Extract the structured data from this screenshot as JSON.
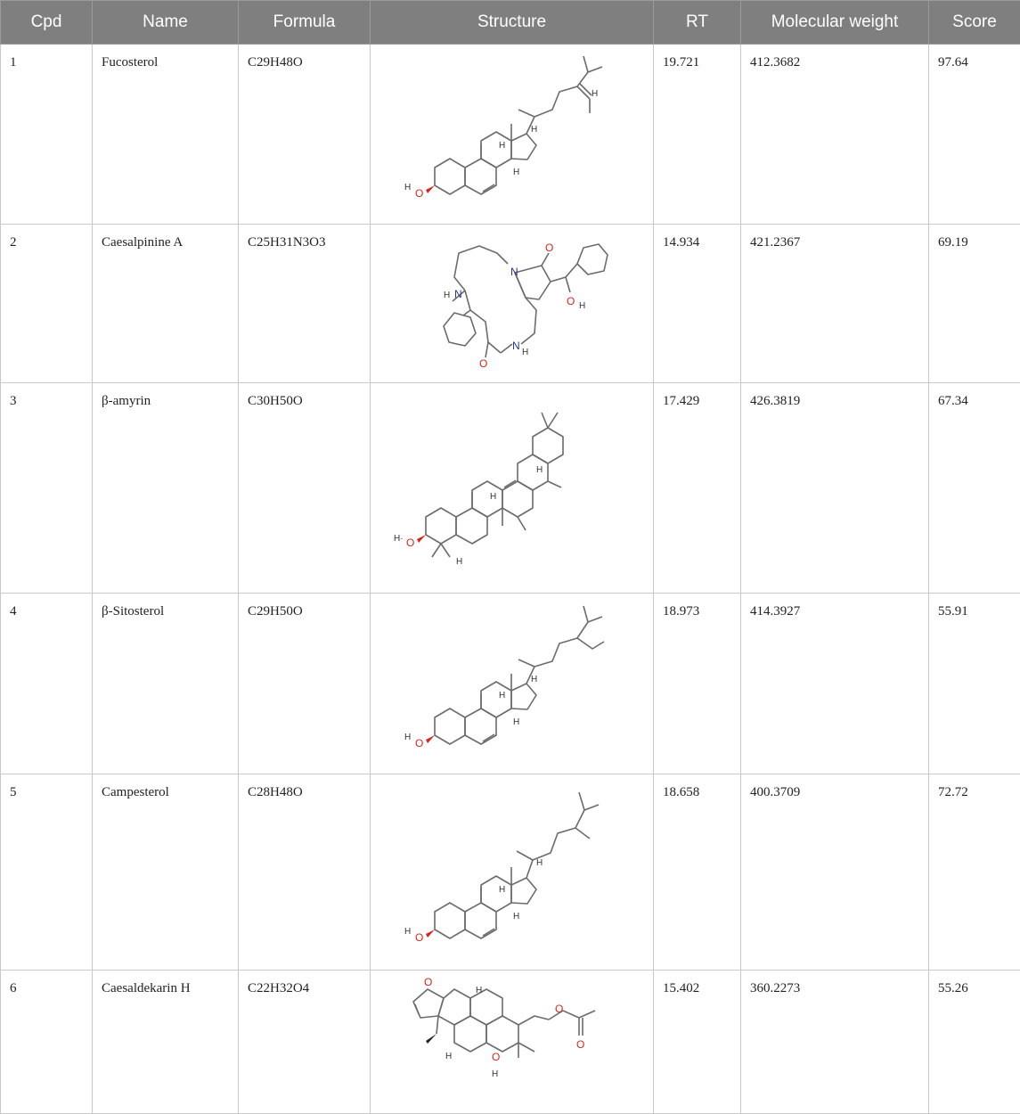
{
  "headers": {
    "cpd": "Cpd",
    "name": "Name",
    "formula": "Formula",
    "structure": "Structure",
    "rt": "RT",
    "mw": "Molecular weight",
    "score": "Score"
  },
  "rows": [
    {
      "cpd": "1",
      "name": "Fucosterol",
      "formula": "C29H48O",
      "rt": "19.721",
      "mw": "412.3682",
      "score": "97.64",
      "structure_icon": "fucosterol-structure"
    },
    {
      "cpd": "2",
      "name": "Caesalpinine A",
      "formula": "C25H31N3O3",
      "rt": "14.934",
      "mw": "421.2367",
      "score": "69.19",
      "structure_icon": "caesalpinine-a-structure"
    },
    {
      "cpd": "3",
      "name": "β-amyrin",
      "formula": "C30H50O",
      "rt": "17.429",
      "mw": "426.3819",
      "score": "67.34",
      "structure_icon": "beta-amyrin-structure"
    },
    {
      "cpd": "4",
      "name": "β-Sitosterol",
      "formula": "C29H50O",
      "rt": "18.973",
      "mw": "414.3927",
      "score": "55.91",
      "structure_icon": "beta-sitosterol-structure"
    },
    {
      "cpd": "5",
      "name": "Campesterol",
      "formula": "C28H48O",
      "rt": "18.658",
      "mw": "400.3709",
      "score": "72.72",
      "structure_icon": "campesterol-structure"
    },
    {
      "cpd": "6",
      "name": "Caesaldekarin H",
      "formula": "C22H32O4",
      "rt": "15.402",
      "mw": "360.2273",
      "score": "55.26",
      "structure_icon": "caesaldekarin-h-structure"
    }
  ],
  "atom_labels": {
    "o": "O",
    "n": "N",
    "h": "H",
    "ho": "H",
    "h_dot": "H·"
  }
}
